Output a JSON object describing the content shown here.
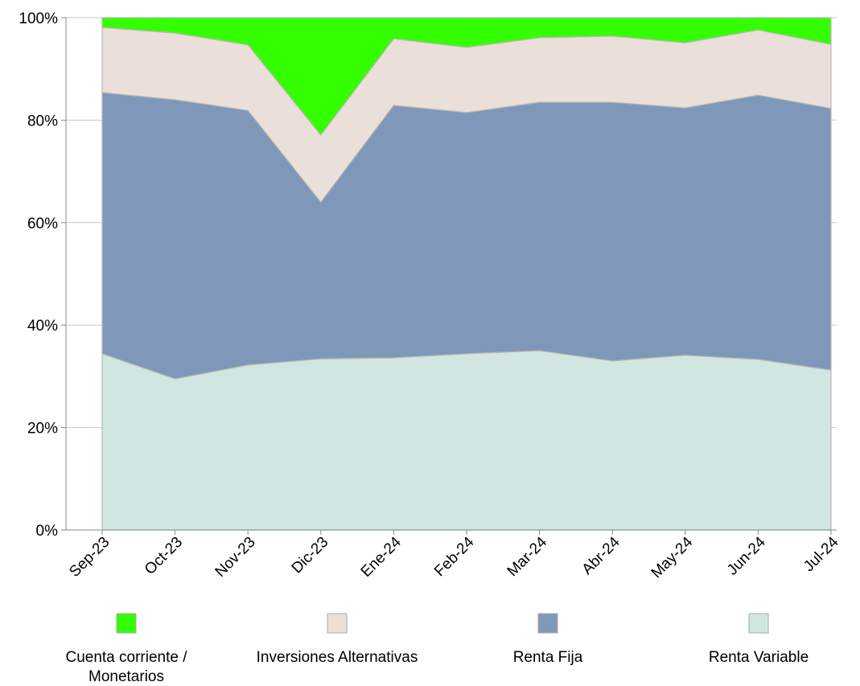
{
  "chart_data": {
    "type": "stacked-area",
    "categories": [
      "Sep-23",
      "Oct-23",
      "Nov-23",
      "Dic-23",
      "Ene-24",
      "Feb-24",
      "Mar-24",
      "Abr-24",
      "May-24",
      "Jun-24",
      "Jul-24"
    ],
    "series": [
      {
        "name": "Cuenta corriente / Monetarios",
        "color": "#33ff00",
        "values": [
          1.9,
          3.0,
          5.3,
          22.9,
          4.1,
          5.8,
          3.9,
          3.6,
          4.9,
          2.4,
          5.2
        ]
      },
      {
        "name": "Inversiones Alternativas",
        "color": "#ebdfd9",
        "values": [
          12.7,
          13.0,
          12.8,
          13.1,
          13.0,
          12.7,
          12.6,
          12.9,
          12.7,
          12.7,
          12.5
        ]
      },
      {
        "name": "Renta Fija",
        "color": "#7f98b9",
        "values": [
          51.0,
          54.5,
          49.7,
          30.6,
          49.3,
          47.1,
          48.5,
          50.5,
          48.3,
          51.6,
          51.1
        ]
      },
      {
        "name": "Renta Variable",
        "color": "#d1e6e0",
        "values": [
          34.4,
          29.5,
          32.2,
          33.4,
          33.6,
          34.4,
          35.0,
          33.0,
          34.1,
          33.3,
          31.2
        ]
      }
    ],
    "ylim": [
      0,
      100
    ],
    "yticks": [
      {
        "value": 0,
        "label": "0%"
      },
      {
        "value": 20,
        "label": "20%"
      },
      {
        "value": 40,
        "label": "40%"
      },
      {
        "value": 60,
        "label": "60%"
      },
      {
        "value": 80,
        "label": "80%"
      },
      {
        "value": 100,
        "label": "100%"
      }
    ],
    "grid": true
  }
}
